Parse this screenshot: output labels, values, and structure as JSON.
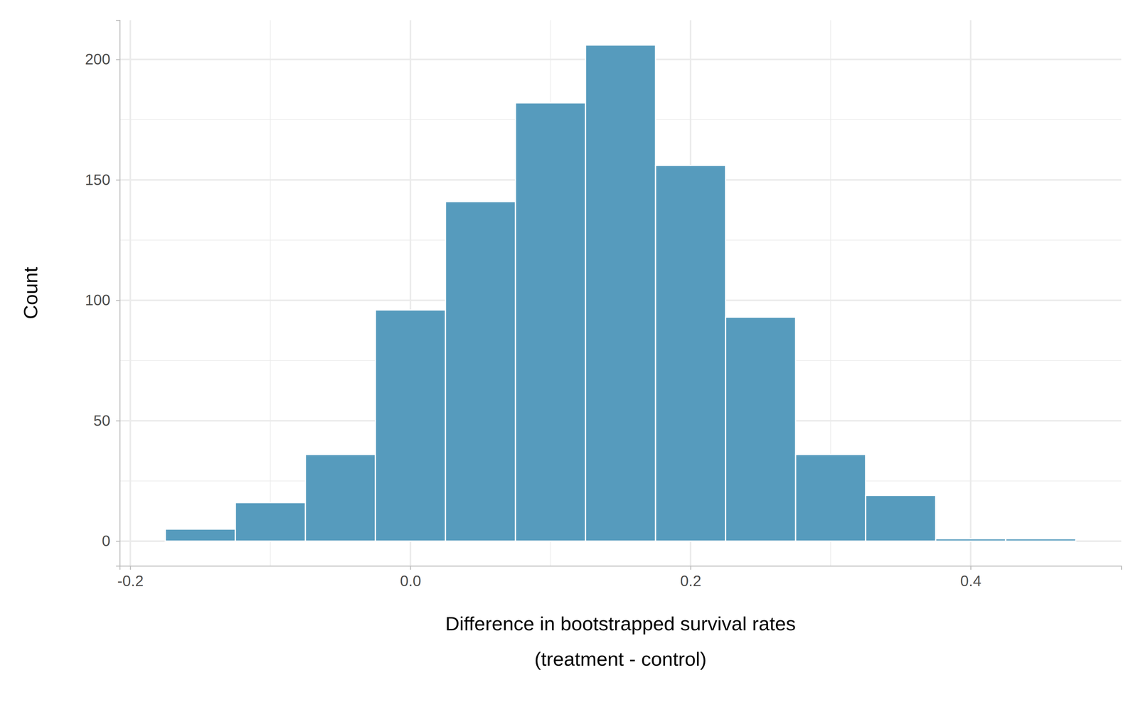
{
  "chart_data": {
    "type": "histogram",
    "xlabel": "Difference in bootstrapped survival rates\n(treatment - control)",
    "ylabel": "Count",
    "bins": [
      -0.175,
      -0.125,
      -0.075,
      -0.025,
      0.025,
      0.075,
      0.125,
      0.175,
      0.225,
      0.275,
      0.325,
      0.375,
      0.425,
      0.475
    ],
    "counts": [
      5,
      16,
      36,
      96,
      141,
      182,
      206,
      156,
      93,
      36,
      19,
      1,
      1
    ],
    "color": "#569BBD",
    "xlim": [
      -0.2075,
      0.5075
    ],
    "xticks": [
      -0.2,
      {
        "value": 0,
        "label": "0.0"
      },
      0.2,
      0.4
    ],
    "ylim": [
      -10.3,
      216.3
    ],
    "yticks": [
      0,
      50,
      100,
      150,
      200
    ],
    "grid": true
  }
}
